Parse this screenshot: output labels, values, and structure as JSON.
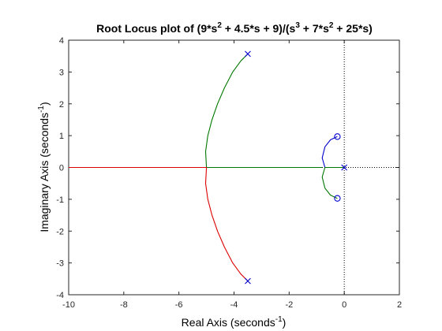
{
  "chart_data": {
    "type": "line",
    "title": {
      "prefix": "Root Locus plot of (9*s",
      "sup1": "2",
      "mid1": " + 4.5*s + 9)/(s",
      "sup2": "3",
      "mid2": " + 7*s",
      "sup3": "2",
      "suffix": " + 25*s)"
    },
    "xlabel": {
      "main": "Real Axis (seconds",
      "sup": "-1",
      "close": ")"
    },
    "ylabel": {
      "main": "Imaginary Axis (seconds",
      "sup": "-1",
      "close": ")"
    },
    "xlim": [
      -10,
      2
    ],
    "ylim": [
      -4,
      4
    ],
    "xticks": [
      -10,
      -8,
      -6,
      -4,
      -2,
      0,
      2
    ],
    "yticks": [
      -4,
      -3,
      -2,
      -1,
      0,
      1,
      2,
      3,
      4
    ],
    "grid": false,
    "colors": {
      "branch_blue": "#0000cc",
      "branch_green": "#007700",
      "branch_red": "#dd0000",
      "axes": "#262626"
    },
    "poles": [
      {
        "x": 0,
        "y": 0
      },
      {
        "x": -3.5,
        "y": 3.57
      },
      {
        "x": -3.5,
        "y": -3.57
      }
    ],
    "zeros": [
      {
        "x": -0.25,
        "y": 0.97
      },
      {
        "x": -0.25,
        "y": -0.97
      }
    ],
    "series": [
      {
        "color": "#0000cc",
        "points": [
          [
            0,
            0
          ],
          [
            -0.4,
            0
          ],
          [
            -0.7,
            0
          ],
          [
            -0.8,
            0.3
          ],
          [
            -0.7,
            0.65
          ],
          [
            -0.5,
            0.87
          ],
          [
            -0.25,
            0.97
          ]
        ]
      },
      {
        "color": "#007700",
        "points": [
          [
            0,
            0
          ],
          [
            -0.4,
            0
          ],
          [
            -0.7,
            0
          ],
          [
            -0.8,
            -0.3
          ],
          [
            -0.7,
            -0.65
          ],
          [
            -0.5,
            -0.87
          ],
          [
            -0.25,
            -0.97
          ]
        ]
      },
      {
        "color": "#007700",
        "points": [
          [
            -0.8,
            0
          ],
          [
            -3.0,
            0
          ],
          [
            -5.0,
            0
          ],
          [
            -5.03,
            0.5
          ],
          [
            -4.95,
            1.0
          ],
          [
            -4.8,
            1.5
          ],
          [
            -4.6,
            2.0
          ],
          [
            -4.35,
            2.5
          ],
          [
            -4.05,
            3.0
          ],
          [
            -3.75,
            3.35
          ],
          [
            -3.5,
            3.57
          ]
        ]
      },
      {
        "color": "#dd0000",
        "points": [
          [
            -10,
            0
          ],
          [
            -5.0,
            0
          ],
          [
            -5.03,
            -0.5
          ],
          [
            -4.95,
            -1.0
          ],
          [
            -4.8,
            -1.5
          ],
          [
            -4.6,
            -2.0
          ],
          [
            -4.35,
            -2.5
          ],
          [
            -4.05,
            -3.0
          ],
          [
            -3.75,
            -3.35
          ],
          [
            -3.5,
            -3.57
          ]
        ]
      }
    ],
    "reference_lines": {
      "vertical_x": 0,
      "horizontal_y": 0,
      "style": "dotted"
    }
  }
}
